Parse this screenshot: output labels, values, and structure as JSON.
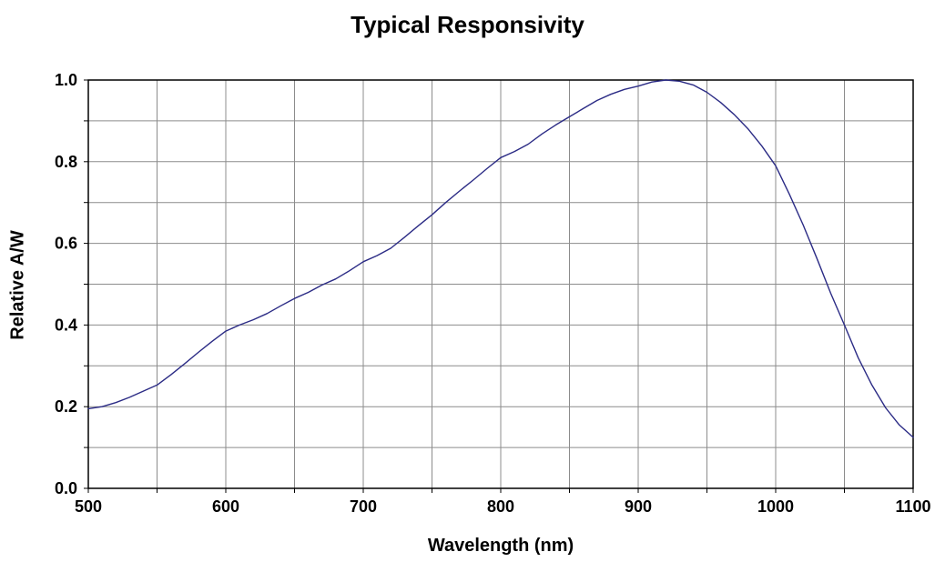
{
  "chart_data": {
    "type": "line",
    "title": "Typical Responsivity",
    "xlabel": "Wavelength (nm)",
    "ylabel": "Relative A/W",
    "xlim": [
      500,
      1100
    ],
    "ylim": [
      0.0,
      1.0
    ],
    "x_grid_step": 50,
    "y_grid_step": 0.1,
    "xticks": [
      500,
      600,
      700,
      800,
      900,
      1000,
      1100
    ],
    "xtick_labels": [
      "500",
      "600",
      "700",
      "800",
      "900",
      "1000",
      "1100"
    ],
    "yticks": [
      0.0,
      0.2,
      0.4,
      0.6,
      0.8,
      1.0
    ],
    "ytick_labels": [
      "0.0",
      "0.2",
      "0.4",
      "0.6",
      "0.8",
      "1.0"
    ],
    "grid": true,
    "legend_position": "none",
    "colors": {
      "line": "#2b2b85",
      "gridline": "#8c8c8c",
      "axis_border": "#000000",
      "background": "#ffffff"
    },
    "series": [
      {
        "name": "Typical Responsivity",
        "x": [
          500,
          510,
          520,
          530,
          540,
          550,
          560,
          570,
          580,
          590,
          600,
          610,
          620,
          630,
          640,
          650,
          660,
          670,
          680,
          690,
          700,
          710,
          720,
          730,
          740,
          750,
          760,
          770,
          780,
          790,
          800,
          810,
          820,
          830,
          840,
          850,
          860,
          870,
          880,
          890,
          900,
          910,
          920,
          930,
          940,
          950,
          960,
          970,
          980,
          990,
          1000,
          1010,
          1020,
          1030,
          1040,
          1050,
          1060,
          1070,
          1080,
          1090,
          1100
        ],
        "y": [
          0.195,
          0.2,
          0.21,
          0.223,
          0.238,
          0.253,
          0.278,
          0.305,
          0.333,
          0.36,
          0.385,
          0.4,
          0.413,
          0.428,
          0.447,
          0.465,
          0.48,
          0.498,
          0.513,
          0.533,
          0.555,
          0.57,
          0.588,
          0.615,
          0.643,
          0.67,
          0.7,
          0.728,
          0.755,
          0.783,
          0.81,
          0.825,
          0.843,
          0.868,
          0.89,
          0.91,
          0.93,
          0.95,
          0.965,
          0.977,
          0.985,
          0.995,
          1.0,
          0.997,
          0.988,
          0.97,
          0.945,
          0.915,
          0.88,
          0.838,
          0.79,
          0.72,
          0.645,
          0.563,
          0.478,
          0.4,
          0.32,
          0.253,
          0.197,
          0.155,
          0.125
        ]
      }
    ]
  }
}
